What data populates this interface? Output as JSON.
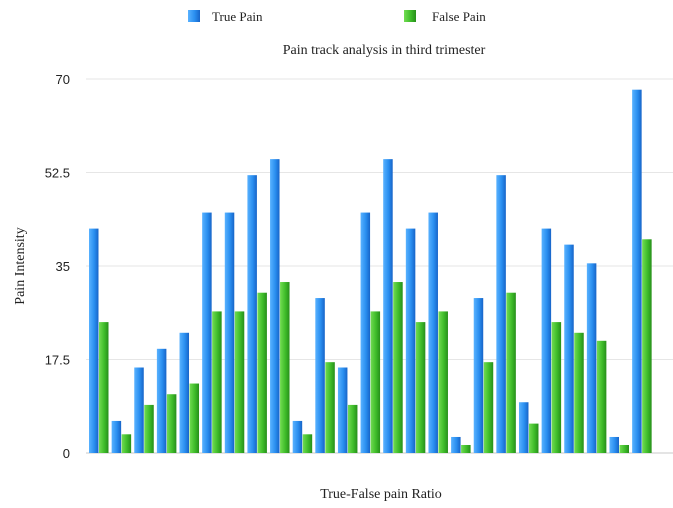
{
  "chart_data": {
    "type": "bar",
    "title": "Pain track analysis  in third trimester",
    "xlabel": "True-False pain Ratio",
    "ylabel": "Pain Intensity",
    "ylim": [
      0,
      70
    ],
    "yticks": [
      "0",
      "17.5",
      "35",
      "52.5",
      "70"
    ],
    "ytick_values": [
      0,
      17.5,
      35,
      52.5,
      70
    ],
    "grid": true,
    "legend_position": "top",
    "categories": [
      "",
      "",
      "",
      "",
      "",
      "",
      "",
      "",
      "",
      "",
      "",
      "",
      "",
      "",
      "",
      "",
      "",
      "",
      "",
      "",
      "",
      "",
      "",
      "",
      "",
      ""
    ],
    "series": [
      {
        "name": "True Pain",
        "color": "#2a8ff0",
        "values": [
          42,
          6,
          16,
          19.5,
          22.5,
          45,
          45,
          52,
          55,
          6,
          29,
          16,
          45,
          55,
          42,
          45,
          3,
          29,
          52,
          9.5,
          42,
          39,
          35.5,
          3,
          68,
          0
        ]
      },
      {
        "name": "False Pain",
        "color": "#3fbd2a",
        "values": [
          24.5,
          3.5,
          9,
          11,
          13,
          26.5,
          26.5,
          30,
          32,
          3.5,
          17,
          9,
          26.5,
          32,
          24.5,
          26.5,
          1.5,
          17,
          30,
          5.5,
          24.5,
          22.5,
          21,
          1.5,
          40,
          0
        ]
      }
    ]
  }
}
